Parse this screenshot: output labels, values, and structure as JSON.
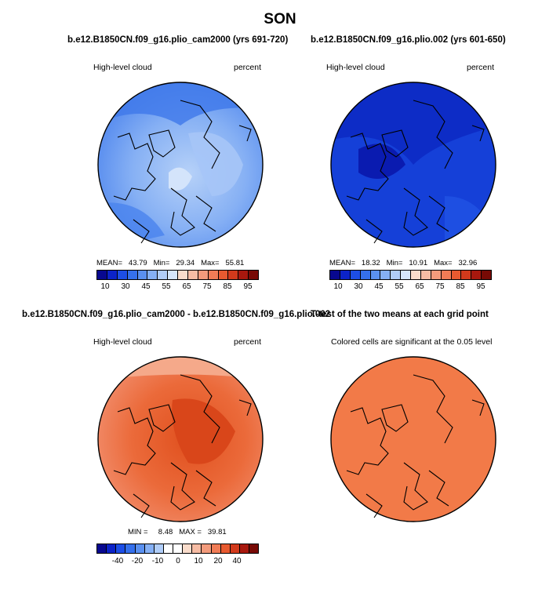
{
  "main_title": "SON",
  "colors": {
    "blue_scale": [
      "#08088f",
      "#0c23c8",
      "#1d4ee6",
      "#3570ec",
      "#5a90f0",
      "#85b0f5",
      "#b0cdf8",
      "#d5e6fb",
      "#f9dccb",
      "#f6bca4",
      "#f39b7c",
      "#f07c56",
      "#e85a30",
      "#d23a1c",
      "#a8180e",
      "#780a05"
    ],
    "diff_scale": [
      "#08088f",
      "#0c23c8",
      "#1d4ee6",
      "#3570ec",
      "#5a90f0",
      "#85b0f5",
      "#b0cdf8",
      "#ffffff",
      "#ffffff",
      "#f9dccb",
      "#f6bca4",
      "#f39b7c",
      "#f07c56",
      "#e85a30",
      "#d23a1c",
      "#a8180e",
      "#780a05"
    ]
  },
  "panels": {
    "top_left": {
      "title": "b.e12.B1850CN.f09_g16.plio_cam2000 (yrs 691-720)",
      "left_label": "High-level cloud",
      "right_label": "percent",
      "stats": "MEAN=   43.79   Min=   29.34   Max=   55.81",
      "colorbar_ticks": [
        "10",
        "30",
        "45",
        "55",
        "65",
        "75",
        "85",
        "95"
      ]
    },
    "top_right": {
      "title": "b.e12.B1850CN.f09_g16.plio.002 (yrs 601-650)",
      "left_label": "High-level cloud",
      "right_label": "percent",
      "stats": "MEAN=   18.32   Min=   10.91   Max=   32.96",
      "colorbar_ticks": [
        "10",
        "30",
        "45",
        "55",
        "65",
        "75",
        "85",
        "95"
      ]
    },
    "bottom_left": {
      "title": "b.e12.B1850CN.f09_g16.plio_cam2000 - b.e12.B1850CN.f09_g16.plio.002",
      "left_label": "High-level cloud",
      "right_label": "percent",
      "stats": "MIN =     8.48   MAX =   39.81",
      "colorbar_ticks": [
        "-40",
        "-20",
        "-10",
        "0",
        "10",
        "20",
        "40"
      ]
    },
    "bottom_right": {
      "title": "T-test of the two means at each grid point",
      "subtitle": "Colored cells are significant at the 0.05 level"
    }
  }
}
